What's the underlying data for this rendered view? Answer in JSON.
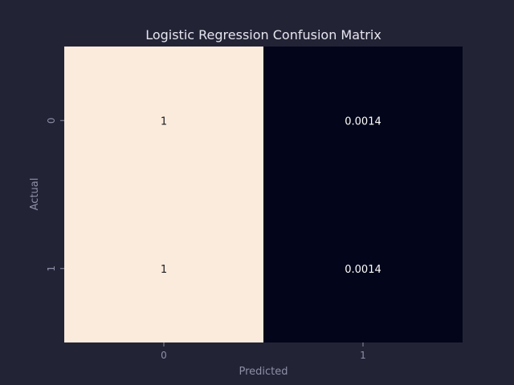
{
  "chart_data": {
    "type": "heatmap",
    "title": "Logistic Regression Confusion Matrix",
    "xlabel": "Predicted",
    "ylabel": "Actual",
    "x_categories": [
      "0",
      "1"
    ],
    "y_categories": [
      "0",
      "1"
    ],
    "values": [
      [
        1,
        0.0014
      ],
      [
        1,
        0.0014
      ]
    ],
    "cell_labels": [
      [
        "1",
        "0.0014"
      ],
      [
        "1",
        "0.0014"
      ]
    ],
    "colors": {
      "high": "#faebdd",
      "low": "#03051a",
      "background": "#232336",
      "text_on_high": "#1a1a1a",
      "text_on_low": "#ffffff"
    },
    "colorbar": false,
    "grid": false
  }
}
